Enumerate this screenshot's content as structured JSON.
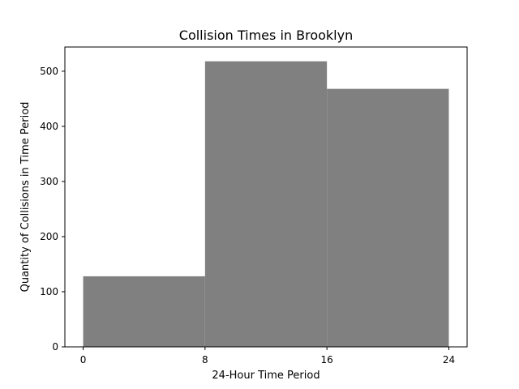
{
  "chart_data": {
    "type": "bar",
    "title": "Collision Times in Brooklyn",
    "xlabel": "24-Hour Time Period",
    "ylabel": "Quantity of Collisions in Time Period",
    "bins": [
      {
        "x_start": 0,
        "x_end": 8,
        "value": 128
      },
      {
        "x_start": 8,
        "x_end": 16,
        "value": 518
      },
      {
        "x_start": 16,
        "x_end": 24,
        "value": 468
      }
    ],
    "xlim": [
      -1.2,
      25.2
    ],
    "ylim": [
      0,
      543.9
    ],
    "x_ticks": [
      0,
      8,
      16,
      24
    ],
    "y_ticks": [
      0,
      100,
      200,
      300,
      400,
      500
    ],
    "bar_color": "#808080",
    "grid": false,
    "legend": "none"
  }
}
